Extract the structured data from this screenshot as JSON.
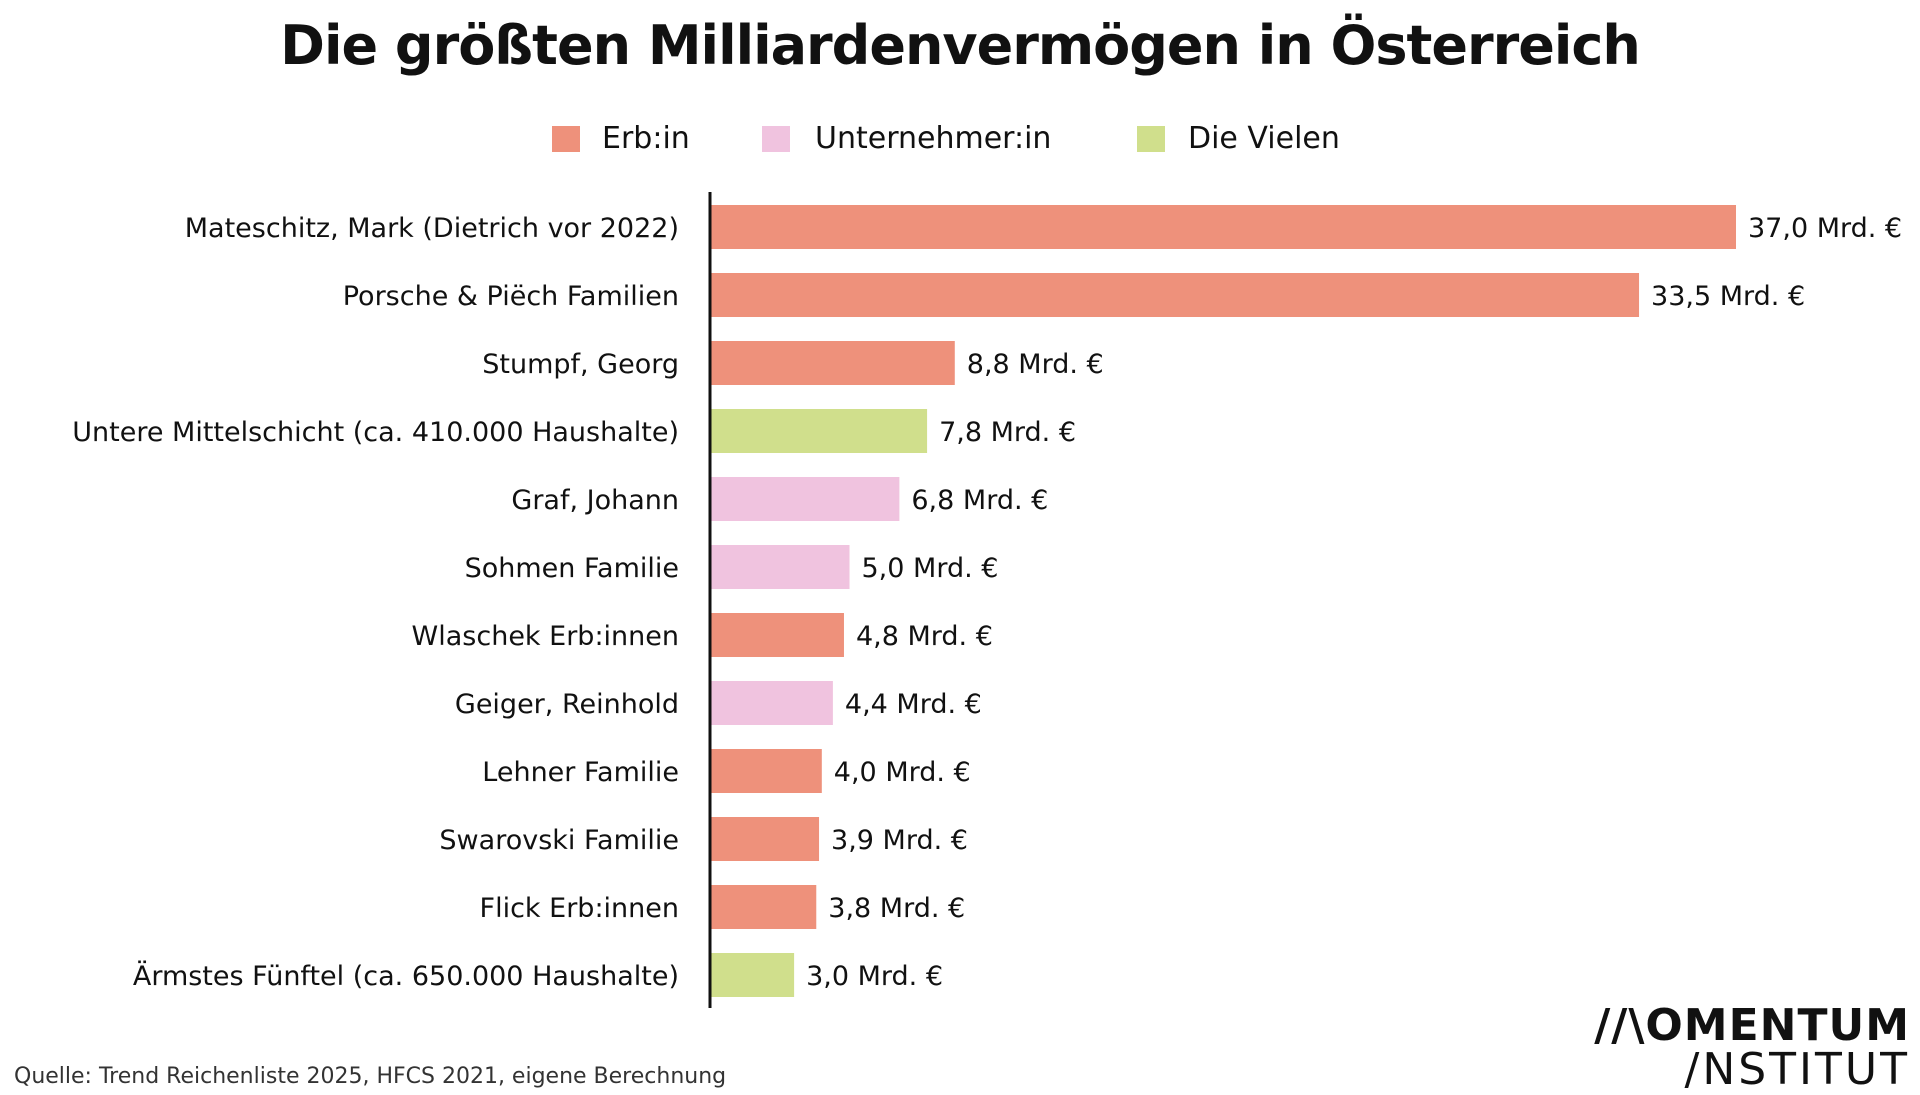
{
  "chart_data": {
    "type": "bar",
    "orientation": "horizontal",
    "title": "Die größten Milliardenvermögen in Österreich",
    "legend": [
      {
        "name": "Erb:in",
        "color": "#ee917b"
      },
      {
        "name": "Unternehmer:in",
        "color": "#f0c3df"
      },
      {
        "name": "Die Vielen",
        "color": "#d0df8c"
      }
    ],
    "categories": [
      "Mateschitz, Mark (Dietrich vor 2022)",
      "Porsche & Piëch Familien",
      "Stumpf, Georg",
      "Untere Mittelschicht (ca. 410.000 Haushalte)",
      "Graf, Johann",
      "Sohmen Familie",
      "Wlaschek Erb:innen",
      "Geiger, Reinhold",
      "Lehner Familie",
      "Swarovski Familie",
      "Flick Erb:innen",
      "Ärmstes Fünftel (ca. 650.000 Haushalte)"
    ],
    "values": [
      37.0,
      33.5,
      8.8,
      7.8,
      6.8,
      5.0,
      4.8,
      4.4,
      4.0,
      3.9,
      3.8,
      3.0
    ],
    "value_labels": [
      "37,0 Mrd. €",
      "33,5 Mrd. €",
      "8,8 Mrd. €",
      "7,8 Mrd. €",
      "6,8 Mrd. €",
      "5,0 Mrd. €",
      "4,8 Mrd. €",
      "4,4 Mrd. €",
      "4,0 Mrd. €",
      "3,9 Mrd. €",
      "3,8 Mrd. €",
      "3,0 Mrd. €"
    ],
    "groups": [
      "Erb:in",
      "Erb:in",
      "Erb:in",
      "Die Vielen",
      "Unternehmer:in",
      "Unternehmer:in",
      "Erb:in",
      "Unternehmer:in",
      "Erb:in",
      "Erb:in",
      "Erb:in",
      "Die Vielen"
    ],
    "xlim": [
      0,
      37.0
    ],
    "unit": "Mrd. €",
    "grid": false
  },
  "source": "Quelle: Trend Reichenliste 2025, HFCS 2021, eigene Berechnung",
  "logo": {
    "line1": "//\\OMENTUM",
    "line2": "/NSTITUT"
  }
}
